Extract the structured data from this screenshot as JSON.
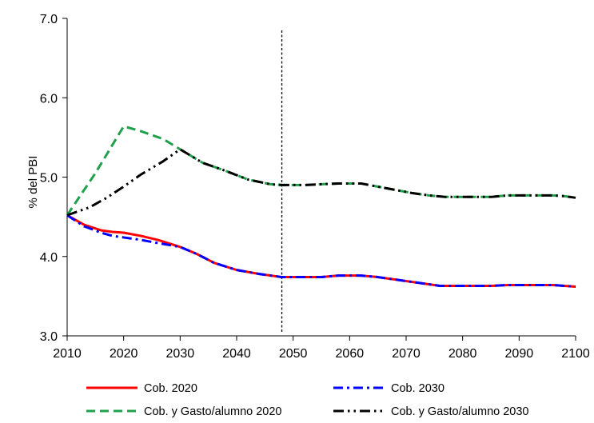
{
  "chart_data": {
    "type": "line",
    "title": "",
    "xlabel": "",
    "ylabel": "% del PBI",
    "xlim": [
      2010,
      2100
    ],
    "ylim": [
      3.0,
      7.0
    ],
    "x_ticks": [
      "2010",
      "2020",
      "2030",
      "2040",
      "2050",
      "2060",
      "2070",
      "2080",
      "2090",
      "2100"
    ],
    "y_ticks": [
      "3.0",
      "4.0",
      "5.0",
      "6.0",
      "7.0"
    ],
    "grid": false,
    "legend_position": "bottom",
    "vertical_reference_line_x": 2048,
    "series": [
      {
        "name": "Cob. 2020",
        "color": "#ff0000",
        "dash": "solid",
        "points": [
          [
            2010,
            4.52
          ],
          [
            2013,
            4.4
          ],
          [
            2016,
            4.33
          ],
          [
            2018,
            4.31
          ],
          [
            2020,
            4.3
          ],
          [
            2023,
            4.26
          ],
          [
            2026,
            4.21
          ],
          [
            2030,
            4.12
          ],
          [
            2033,
            4.03
          ],
          [
            2036,
            3.92
          ],
          [
            2040,
            3.83
          ],
          [
            2044,
            3.78
          ],
          [
            2048,
            3.74
          ],
          [
            2052,
            3.74
          ],
          [
            2055,
            3.74
          ],
          [
            2058,
            3.76
          ],
          [
            2062,
            3.76
          ],
          [
            2065,
            3.74
          ],
          [
            2068,
            3.71
          ],
          [
            2071,
            3.68
          ],
          [
            2074,
            3.65
          ],
          [
            2076,
            3.63
          ],
          [
            2080,
            3.63
          ],
          [
            2085,
            3.63
          ],
          [
            2088,
            3.64
          ],
          [
            2092,
            3.64
          ],
          [
            2096,
            3.64
          ],
          [
            2098,
            3.63
          ],
          [
            2100,
            3.62
          ]
        ]
      },
      {
        "name": "Cob. 2030",
        "color": "#0000ff",
        "dash": "dashdot",
        "points": [
          [
            2010,
            4.52
          ],
          [
            2013,
            4.38
          ],
          [
            2016,
            4.3
          ],
          [
            2018,
            4.26
          ],
          [
            2020,
            4.24
          ],
          [
            2023,
            4.21
          ],
          [
            2026,
            4.17
          ],
          [
            2030,
            4.12
          ],
          [
            2033,
            4.03
          ],
          [
            2036,
            3.92
          ],
          [
            2040,
            3.83
          ],
          [
            2044,
            3.78
          ],
          [
            2048,
            3.74
          ],
          [
            2052,
            3.74
          ],
          [
            2055,
            3.74
          ],
          [
            2058,
            3.76
          ],
          [
            2062,
            3.76
          ],
          [
            2065,
            3.74
          ],
          [
            2068,
            3.71
          ],
          [
            2071,
            3.68
          ],
          [
            2074,
            3.65
          ],
          [
            2076,
            3.63
          ],
          [
            2080,
            3.63
          ],
          [
            2085,
            3.63
          ],
          [
            2088,
            3.64
          ],
          [
            2092,
            3.64
          ],
          [
            2096,
            3.64
          ],
          [
            2098,
            3.63
          ],
          [
            2100,
            3.62
          ]
        ]
      },
      {
        "name": "Cob. y Gasto/alumno 2020",
        "color": "#1fa04a",
        "dash": "dashed",
        "points": [
          [
            2010,
            4.52
          ],
          [
            2015,
            5.05
          ],
          [
            2020,
            5.64
          ],
          [
            2023,
            5.58
          ],
          [
            2027,
            5.48
          ],
          [
            2030,
            5.35
          ],
          [
            2034,
            5.18
          ],
          [
            2038,
            5.08
          ],
          [
            2042,
            4.97
          ],
          [
            2046,
            4.91
          ],
          [
            2048,
            4.9
          ],
          [
            2052,
            4.9
          ],
          [
            2055,
            4.91
          ],
          [
            2058,
            4.92
          ],
          [
            2062,
            4.92
          ],
          [
            2065,
            4.88
          ],
          [
            2068,
            4.84
          ],
          [
            2071,
            4.8
          ],
          [
            2074,
            4.77
          ],
          [
            2077,
            4.75
          ],
          [
            2080,
            4.75
          ],
          [
            2085,
            4.75
          ],
          [
            2088,
            4.77
          ],
          [
            2092,
            4.77
          ],
          [
            2096,
            4.77
          ],
          [
            2098,
            4.76
          ],
          [
            2100,
            4.74
          ]
        ]
      },
      {
        "name": "Cob. y Gasto/alumno 2030",
        "color": "#000000",
        "dash": "dashdotdot",
        "points": [
          [
            2010,
            4.52
          ],
          [
            2014,
            4.62
          ],
          [
            2017,
            4.74
          ],
          [
            2020,
            4.88
          ],
          [
            2023,
            5.03
          ],
          [
            2027,
            5.2
          ],
          [
            2030,
            5.35
          ],
          [
            2034,
            5.18
          ],
          [
            2038,
            5.08
          ],
          [
            2042,
            4.97
          ],
          [
            2046,
            4.91
          ],
          [
            2048,
            4.9
          ],
          [
            2052,
            4.9
          ],
          [
            2055,
            4.91
          ],
          [
            2058,
            4.92
          ],
          [
            2062,
            4.92
          ],
          [
            2065,
            4.88
          ],
          [
            2068,
            4.84
          ],
          [
            2071,
            4.8
          ],
          [
            2074,
            4.77
          ],
          [
            2077,
            4.75
          ],
          [
            2080,
            4.75
          ],
          [
            2085,
            4.75
          ],
          [
            2088,
            4.77
          ],
          [
            2092,
            4.77
          ],
          [
            2096,
            4.77
          ],
          [
            2098,
            4.76
          ],
          [
            2100,
            4.74
          ]
        ]
      }
    ]
  }
}
